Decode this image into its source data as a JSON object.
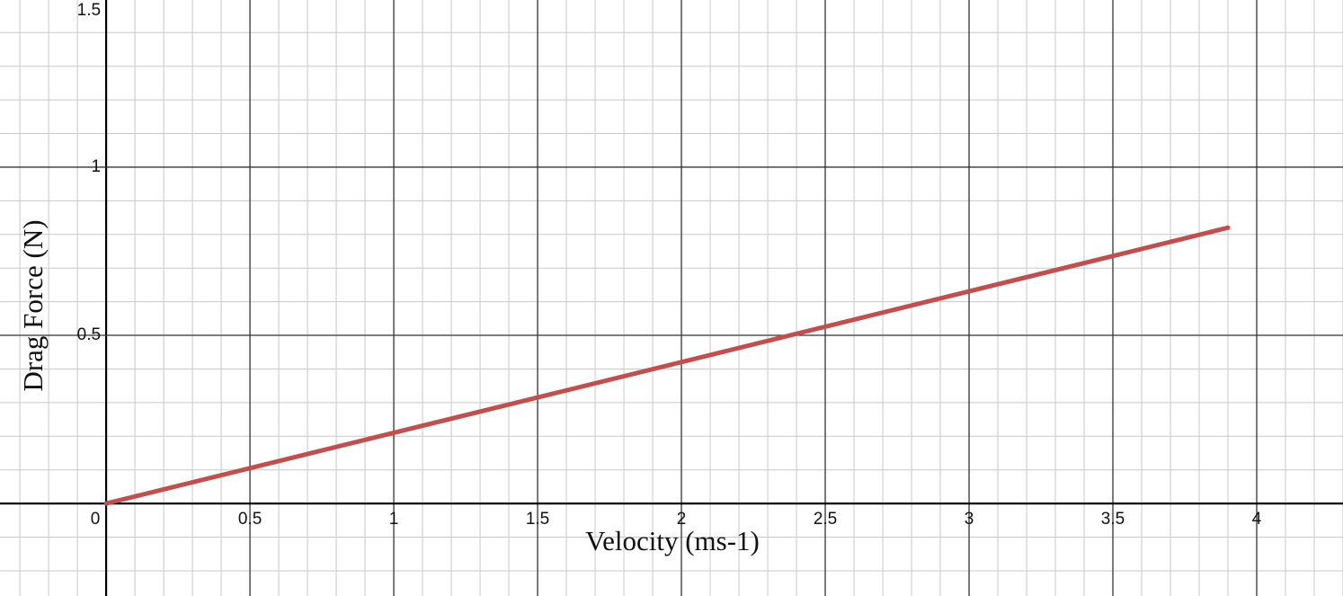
{
  "chart_data": {
    "type": "line",
    "x_label": "Velocity (ms-1)",
    "y_label": "Drag Force (N)",
    "x": [
      0,
      3.9
    ],
    "values": [
      0,
      0.82
    ],
    "color": "#c0504d",
    "xlim": [
      -0.369,
      4.3
    ],
    "ylim": [
      -0.275,
      1.497
    ],
    "xticks": [
      0,
      0.5,
      1,
      1.5,
      2,
      2.5,
      3,
      3.5,
      4
    ],
    "yticks": [
      0.5,
      1,
      1.5
    ],
    "grid": true
  }
}
